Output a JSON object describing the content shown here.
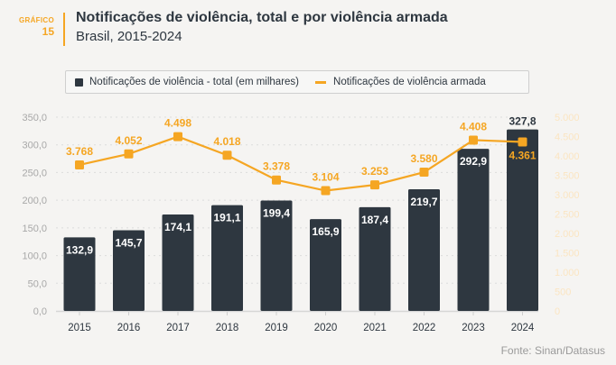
{
  "header": {
    "figure_word": "GRÁFICO",
    "figure_number": "15",
    "title": "Notificações de violência, total e por violência armada",
    "subtitle": "Brasil, 2015-2024"
  },
  "colors": {
    "bar": "#2e3740",
    "line": "#f5a623",
    "accent": "#f5a623",
    "left_axis_text": "#a8a8a8",
    "right_axis_text": "#fbe5c2",
    "year_text": "#2e3740",
    "source_text": "#9a9a9a"
  },
  "legend": {
    "items": [
      {
        "label": "Notificações de violência - total (em milhares)",
        "type": "bar"
      },
      {
        "label": "Notificações de violência armada",
        "type": "line"
      }
    ]
  },
  "source": "Fonte: Sinan/Datasus",
  "chart_data": {
    "type": "bar",
    "title": "Notificações de violência, total e por violência armada",
    "subtitle": "Brasil, 2015-2024",
    "categories": [
      "2015",
      "2016",
      "2017",
      "2018",
      "2019",
      "2020",
      "2021",
      "2022",
      "2023",
      "2024"
    ],
    "series": [
      {
        "name": "Notificações de violência - total (em milhares)",
        "type": "bar",
        "axis": "left",
        "values": [
          132.9,
          145.7,
          174.1,
          191.1,
          199.4,
          165.9,
          187.4,
          219.7,
          292.9,
          327.8
        ],
        "labels": [
          "132,9",
          "145,7",
          "174,1",
          "191,1",
          "199,4",
          "165,9",
          "187,4",
          "219,7",
          "292,9",
          "327,8"
        ]
      },
      {
        "name": "Notificações de violência armada",
        "type": "line",
        "axis": "right",
        "values": [
          3768,
          4052,
          4498,
          4018,
          3378,
          3104,
          3253,
          3580,
          4408,
          4361
        ],
        "labels": [
          "3.768",
          "4.052",
          "4.498",
          "4.018",
          "3.378",
          "3.104",
          "3.253",
          "3.580",
          "4.408",
          "4.361"
        ]
      }
    ],
    "left_axis": {
      "range": [
        0,
        350
      ],
      "ticks": [
        0,
        50,
        100,
        150,
        200,
        250,
        300,
        350
      ],
      "tick_labels": [
        "0,0",
        "50,0",
        "100,0",
        "150,0",
        "200,0",
        "250,0",
        "300,0",
        "350,0"
      ]
    },
    "right_axis": {
      "range": [
        0,
        5000
      ],
      "ticks": [
        0,
        500,
        1000,
        1500,
        2000,
        2500,
        3000,
        3500,
        4000,
        4500,
        5000
      ],
      "tick_labels": [
        "0",
        "500",
        "1.000",
        "1.500",
        "2.000",
        "2.500",
        "3.000",
        "3.500",
        "4.000",
        "4.500",
        "5.000"
      ]
    },
    "grid": true,
    "legend_position": "top"
  }
}
